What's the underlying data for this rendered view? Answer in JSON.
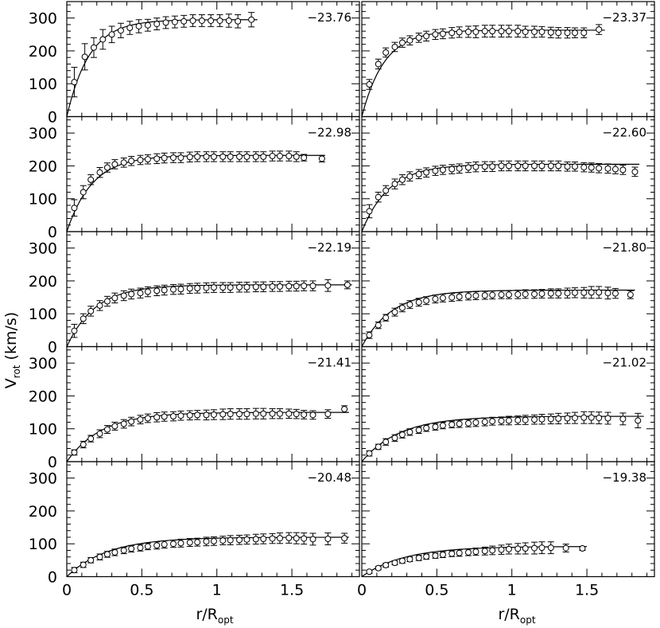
{
  "chart_data": {
    "type": "scatter",
    "layout": "5x2 grid of panels sharing axes",
    "ylabel": {
      "main": "V",
      "sub": "rot",
      "rest": " (km/s)"
    },
    "xlabel": {
      "main": "r/R",
      "sub": "opt"
    },
    "xlim": [
      0,
      1.95
    ],
    "ylim": [
      0,
      350
    ],
    "x_ticks": [
      "0",
      "0.5",
      "1",
      "1.5"
    ],
    "y_ticks": [
      "0",
      "100",
      "200",
      "300"
    ],
    "marker": "open circle with error bars",
    "line": "solid model curve",
    "panels": [
      {
        "label": "−23.76",
        "vmax": 295,
        "rcore": 0.15,
        "xmax": 1.27,
        "x": [
          0.05,
          0.12,
          0.18,
          0.24,
          0.3,
          0.36,
          0.42,
          0.48,
          0.54,
          0.6,
          0.66,
          0.72,
          0.78,
          0.84,
          0.9,
          0.96,
          1.02,
          1.08,
          1.14,
          1.23
        ],
        "y": [
          105,
          182,
          210,
          235,
          250,
          262,
          270,
          275,
          278,
          282,
          286,
          288,
          290,
          292,
          292,
          292,
          292,
          292,
          290,
          295
        ],
        "err": [
          45,
          40,
          30,
          30,
          25,
          22,
          20,
          20,
          18,
          18,
          18,
          18,
          18,
          18,
          18,
          18,
          18,
          20,
          20,
          22
        ]
      },
      {
        "label": "−23.37",
        "vmax": 263,
        "rcore": 0.15,
        "xmax": 1.62,
        "x": [
          0.05,
          0.11,
          0.16,
          0.22,
          0.27,
          0.32,
          0.38,
          0.43,
          0.49,
          0.54,
          0.6,
          0.65,
          0.71,
          0.76,
          0.82,
          0.87,
          0.93,
          0.98,
          1.04,
          1.09,
          1.15,
          1.2,
          1.26,
          1.31,
          1.37,
          1.42,
          1.48,
          1.58
        ],
        "y": [
          98,
          160,
          195,
          212,
          225,
          232,
          240,
          245,
          250,
          252,
          255,
          257,
          258,
          258,
          260,
          260,
          260,
          260,
          260,
          258,
          258,
          258,
          256,
          255,
          255,
          255,
          255,
          265
        ],
        "err": [
          15,
          15,
          14,
          14,
          14,
          14,
          14,
          15,
          15,
          15,
          16,
          16,
          17,
          18,
          18,
          18,
          18,
          18,
          18,
          17,
          17,
          16,
          16,
          16,
          16,
          15,
          15,
          15
        ]
      },
      {
        "label": "−22.98",
        "vmax": 232,
        "rcore": 0.17,
        "xmax": 1.72,
        "x": [
          0.05,
          0.11,
          0.16,
          0.22,
          0.27,
          0.32,
          0.38,
          0.43,
          0.49,
          0.54,
          0.6,
          0.65,
          0.71,
          0.76,
          0.82,
          0.87,
          0.93,
          0.98,
          1.04,
          1.09,
          1.15,
          1.2,
          1.26,
          1.31,
          1.37,
          1.42,
          1.48,
          1.53,
          1.58,
          1.7
        ],
        "y": [
          72,
          120,
          158,
          180,
          195,
          205,
          210,
          215,
          218,
          220,
          222,
          224,
          225,
          225,
          227,
          228,
          228,
          228,
          228,
          228,
          228,
          228,
          228,
          228,
          230,
          230,
          230,
          228,
          225,
          222
        ],
        "err": [
          25,
          20,
          15,
          15,
          14,
          14,
          14,
          14,
          14,
          14,
          15,
          15,
          15,
          15,
          15,
          15,
          15,
          15,
          15,
          15,
          15,
          15,
          15,
          15,
          15,
          15,
          15,
          15,
          10,
          10
        ]
      },
      {
        "label": "−22.60",
        "vmax": 205,
        "rcore": 0.18,
        "xmax": 1.85,
        "x": [
          0.05,
          0.11,
          0.16,
          0.22,
          0.27,
          0.32,
          0.38,
          0.43,
          0.49,
          0.54,
          0.6,
          0.65,
          0.71,
          0.76,
          0.82,
          0.87,
          0.93,
          0.98,
          1.04,
          1.09,
          1.15,
          1.2,
          1.26,
          1.31,
          1.37,
          1.42,
          1.48,
          1.53,
          1.58,
          1.64,
          1.69,
          1.74,
          1.82
        ],
        "y": [
          62,
          105,
          125,
          145,
          158,
          168,
          175,
          180,
          185,
          188,
          190,
          192,
          195,
          197,
          198,
          198,
          200,
          200,
          200,
          200,
          200,
          200,
          200,
          200,
          198,
          198,
          196,
          195,
          193,
          192,
          190,
          188,
          182
        ],
        "err": [
          20,
          15,
          15,
          15,
          15,
          14,
          14,
          14,
          14,
          14,
          14,
          14,
          15,
          15,
          15,
          15,
          15,
          15,
          15,
          15,
          15,
          15,
          15,
          15,
          14,
          14,
          14,
          14,
          14,
          14,
          14,
          14,
          14
        ]
      },
      {
        "label": "−22.19",
        "vmax": 188,
        "rcore": 0.19,
        "xmax": 1.9,
        "x": [
          0.05,
          0.11,
          0.16,
          0.22,
          0.27,
          0.32,
          0.38,
          0.43,
          0.49,
          0.54,
          0.6,
          0.65,
          0.71,
          0.76,
          0.82,
          0.87,
          0.93,
          0.98,
          1.04,
          1.09,
          1.15,
          1.2,
          1.26,
          1.31,
          1.37,
          1.42,
          1.48,
          1.53,
          1.58,
          1.64,
          1.74,
          1.87
        ],
        "y": [
          48,
          85,
          108,
          125,
          138,
          148,
          155,
          160,
          163,
          167,
          170,
          172,
          174,
          175,
          177,
          178,
          179,
          180,
          180,
          180,
          181,
          181,
          182,
          182,
          183,
          183,
          184,
          184,
          185,
          185,
          186,
          188
        ],
        "err": [
          20,
          15,
          15,
          15,
          15,
          15,
          15,
          15,
          15,
          15,
          15,
          15,
          15,
          15,
          15,
          15,
          15,
          15,
          15,
          15,
          15,
          15,
          15,
          15,
          15,
          15,
          15,
          15,
          15,
          15,
          18,
          12
        ]
      },
      {
        "label": "−21.80",
        "vmax": 172,
        "rcore": 0.2,
        "xmax": 1.82,
        "x": [
          0.05,
          0.11,
          0.16,
          0.22,
          0.27,
          0.32,
          0.38,
          0.43,
          0.49,
          0.54,
          0.6,
          0.65,
          0.71,
          0.76,
          0.82,
          0.87,
          0.93,
          0.98,
          1.04,
          1.09,
          1.15,
          1.2,
          1.26,
          1.31,
          1.37,
          1.42,
          1.48,
          1.53,
          1.58,
          1.64,
          1.69,
          1.79
        ],
        "y": [
          35,
          65,
          88,
          105,
          118,
          128,
          135,
          140,
          145,
          148,
          150,
          152,
          154,
          155,
          156,
          157,
          158,
          158,
          159,
          160,
          160,
          161,
          162,
          162,
          163,
          164,
          164,
          165,
          165,
          163,
          162,
          158
        ],
        "err": [
          10,
          10,
          10,
          12,
          12,
          12,
          12,
          12,
          12,
          12,
          12,
          12,
          12,
          12,
          12,
          12,
          12,
          12,
          13,
          13,
          13,
          13,
          14,
          14,
          15,
          15,
          16,
          18,
          18,
          18,
          15,
          12
        ]
      },
      {
        "label": "−21.41",
        "vmax": 150,
        "rcore": 0.23,
        "xmax": 1.88,
        "x": [
          0.05,
          0.11,
          0.16,
          0.22,
          0.27,
          0.32,
          0.38,
          0.43,
          0.49,
          0.54,
          0.6,
          0.65,
          0.71,
          0.76,
          0.82,
          0.87,
          0.93,
          0.98,
          1.04,
          1.09,
          1.15,
          1.2,
          1.26,
          1.31,
          1.37,
          1.42,
          1.48,
          1.53,
          1.58,
          1.64,
          1.74,
          1.85
        ],
        "y": [
          28,
          52,
          70,
          85,
          98,
          108,
          115,
          122,
          128,
          132,
          135,
          137,
          138,
          140,
          141,
          142,
          142,
          143,
          144,
          145,
          145,
          145,
          146,
          146,
          146,
          146,
          146,
          145,
          143,
          142,
          145,
          160
        ],
        "err": [
          8,
          10,
          10,
          12,
          12,
          12,
          13,
          13,
          13,
          13,
          14,
          14,
          14,
          14,
          14,
          14,
          15,
          15,
          16,
          16,
          16,
          16,
          16,
          16,
          15,
          15,
          14,
          14,
          13,
          13,
          13,
          10
        ]
      },
      {
        "label": "−21.02",
        "vmax": 138,
        "rcore": 0.25,
        "xmax": 1.88,
        "x": [
          0.05,
          0.11,
          0.16,
          0.22,
          0.27,
          0.32,
          0.38,
          0.43,
          0.49,
          0.54,
          0.6,
          0.65,
          0.71,
          0.76,
          0.82,
          0.87,
          0.93,
          0.98,
          1.04,
          1.09,
          1.15,
          1.2,
          1.26,
          1.31,
          1.37,
          1.42,
          1.48,
          1.53,
          1.58,
          1.64,
          1.74,
          1.84
        ],
        "y": [
          25,
          45,
          60,
          72,
          82,
          90,
          96,
          102,
          106,
          110,
          113,
          115,
          117,
          119,
          121,
          123,
          124,
          125,
          126,
          127,
          128,
          129,
          130,
          131,
          132,
          133,
          134,
          134,
          133,
          132,
          130,
          125
        ],
        "err": [
          8,
          8,
          10,
          10,
          10,
          10,
          10,
          10,
          10,
          10,
          10,
          11,
          11,
          12,
          12,
          12,
          12,
          13,
          13,
          14,
          14,
          15,
          15,
          16,
          16,
          17,
          18,
          18,
          18,
          18,
          18,
          22
        ]
      },
      {
        "label": "−20.48",
        "vmax": 120,
        "rcore": 0.27,
        "xmax": 1.88,
        "x": [
          0.05,
          0.11,
          0.16,
          0.22,
          0.27,
          0.32,
          0.38,
          0.43,
          0.49,
          0.54,
          0.6,
          0.65,
          0.71,
          0.76,
          0.82,
          0.87,
          0.93,
          0.98,
          1.04,
          1.09,
          1.15,
          1.2,
          1.26,
          1.31,
          1.37,
          1.42,
          1.48,
          1.53,
          1.58,
          1.64,
          1.74,
          1.85
        ],
        "y": [
          20,
          36,
          50,
          60,
          68,
          74,
          80,
          85,
          88,
          92,
          95,
          98,
          100,
          102,
          104,
          105,
          107,
          108,
          110,
          111,
          112,
          113,
          114,
          115,
          116,
          117,
          118,
          117,
          116,
          114,
          115,
          117
        ],
        "err": [
          8,
          8,
          8,
          9,
          9,
          10,
          10,
          10,
          10,
          10,
          11,
          11,
          11,
          12,
          12,
          12,
          13,
          13,
          13,
          14,
          14,
          14,
          15,
          15,
          15,
          16,
          16,
          17,
          17,
          18,
          18,
          15
        ]
      },
      {
        "label": "−19.38",
        "vmax": 92,
        "rcore": 0.28,
        "xmax": 1.5,
        "x": [
          0.05,
          0.11,
          0.16,
          0.22,
          0.27,
          0.32,
          0.38,
          0.43,
          0.49,
          0.54,
          0.6,
          0.65,
          0.71,
          0.76,
          0.82,
          0.87,
          0.93,
          0.98,
          1.04,
          1.09,
          1.15,
          1.2,
          1.26,
          1.36,
          1.47
        ],
        "y": [
          15,
          26,
          35,
          42,
          48,
          53,
          57,
          61,
          64,
          67,
          70,
          72,
          74,
          76,
          78,
          80,
          82,
          84,
          85,
          86,
          87,
          88,
          88,
          87,
          86
        ],
        "err": [
          5,
          5,
          6,
          6,
          7,
          7,
          8,
          8,
          8,
          9,
          9,
          10,
          10,
          11,
          12,
          13,
          14,
          15,
          16,
          17,
          18,
          18,
          18,
          12,
          6
        ]
      }
    ]
  }
}
